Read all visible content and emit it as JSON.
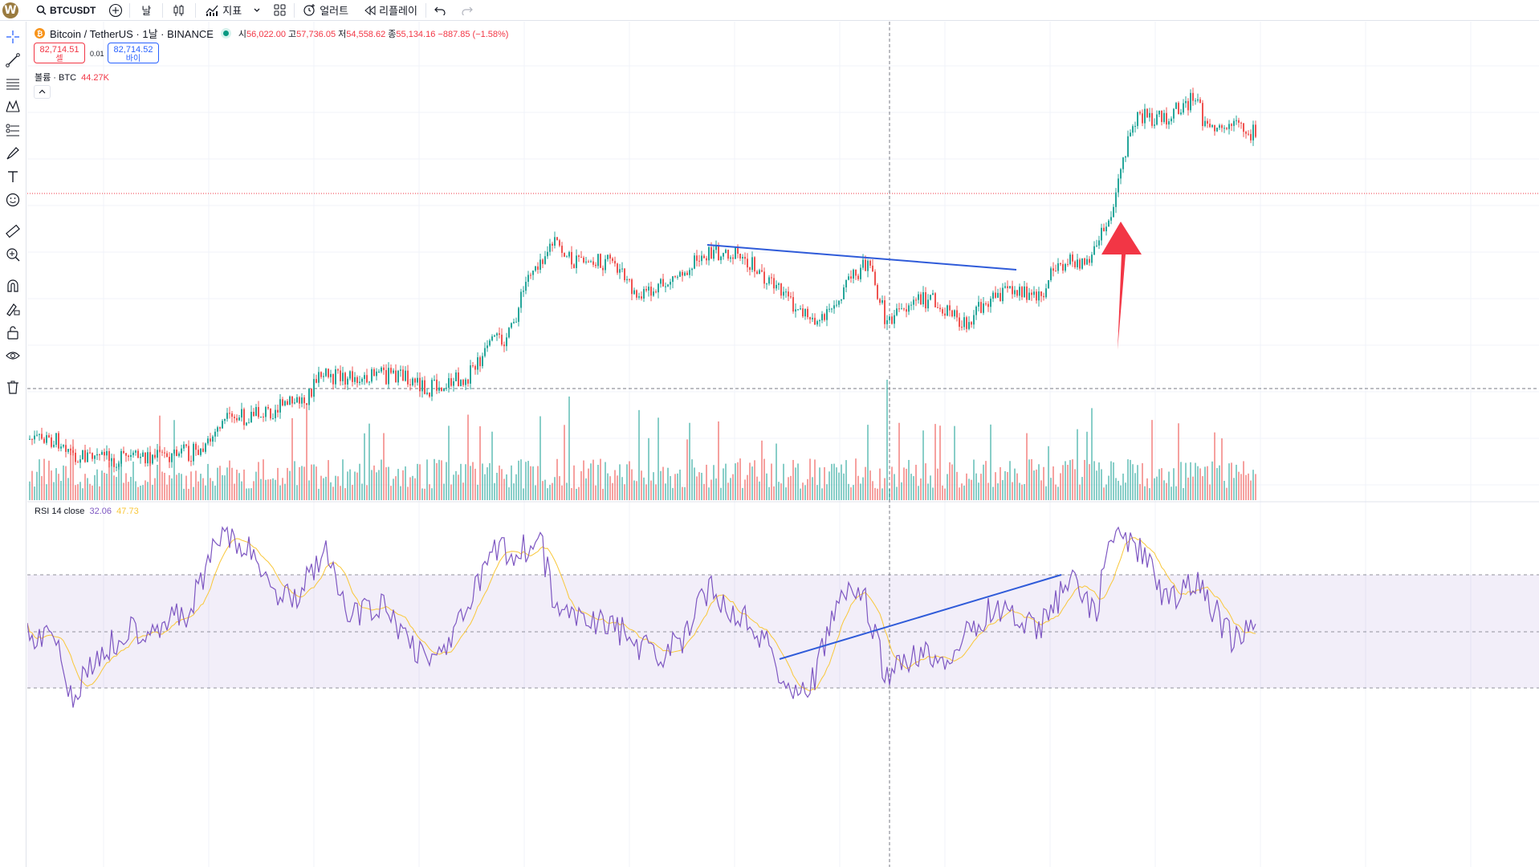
{
  "toolbar": {
    "logo_letter": "W",
    "symbol": "BTCUSDT",
    "interval": "날",
    "indicators_label": "지표",
    "alert_label": "얼러트",
    "replay_label": "리플레이"
  },
  "legend": {
    "title": "Bitcoin / TetherUS · 1날 · BINANCE",
    "open_label": "시",
    "open": "56,022.00",
    "high_label": "고",
    "high": "57,736.05",
    "low_label": "저",
    "low": "54,558.62",
    "close_label": "종",
    "close": "55,134.16",
    "change": "−887.85 (−1.58%)"
  },
  "order": {
    "sell_price": "82,714.51",
    "sell_label": "셀",
    "spread": "0.01",
    "buy_price": "82,714.52",
    "buy_label": "바이"
  },
  "volume_legend": {
    "label": "볼륨 · BTC",
    "value": "44.27K"
  },
  "rsi_legend": {
    "label": "RSI 14 close",
    "rsi_value": "32.06",
    "ma_value": "47.73"
  },
  "colors": {
    "up": "#26a69a",
    "down": "#ef5350",
    "trendline": "#2f5bd9",
    "rsi": "#7e57c2",
    "rsi_ma": "#f9c739",
    "arrow": "#f23645"
  },
  "icons": [
    "search-icon",
    "add-symbol-icon",
    "candles-icon",
    "indicators-icon",
    "chevron-down-icon",
    "layout-icon",
    "alert-icon",
    "replay-icon",
    "undo-icon",
    "redo-icon",
    "crosshair-icon",
    "trendline-icon",
    "fib-icon",
    "pattern-icon",
    "projection-icon",
    "brush-icon",
    "text-icon",
    "emoji-icon",
    "ruler-icon",
    "zoom-icon",
    "magnet-icon",
    "lock-drawing-icon",
    "lock-icon",
    "eye-icon",
    "trash-icon"
  ]
}
